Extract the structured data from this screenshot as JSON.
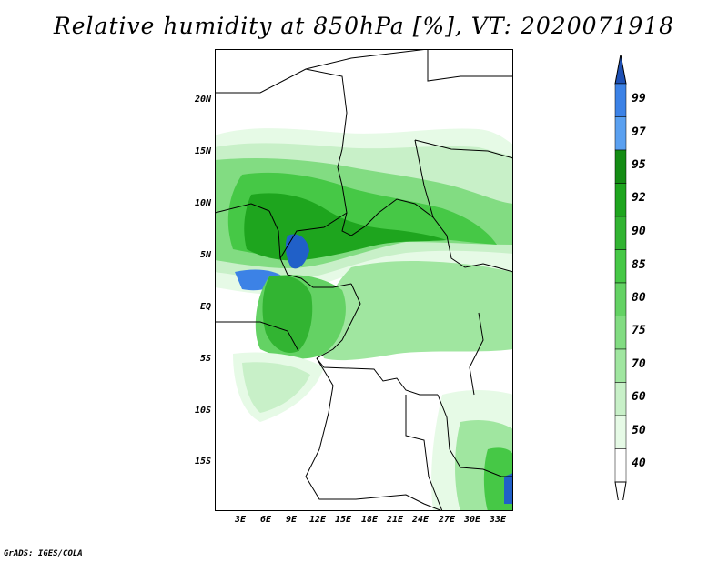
{
  "title": "Relative humidity at 850hPa [%], VT: 2020071918",
  "credit": "GrADS: IGES/COLA",
  "map": {
    "lat_labels": [
      "20N",
      "15N",
      "10N",
      "5N",
      "EQ",
      "5S",
      "10S",
      "15S"
    ],
    "lon_labels": [
      "3E",
      "6E",
      "9E",
      "12E",
      "15E",
      "18E",
      "21E",
      "24E",
      "27E",
      "30E",
      "33E"
    ],
    "lat_range": [
      -19.5,
      24.5
    ],
    "lon_range": [
      0,
      34
    ]
  },
  "colorbar": {
    "levels": [
      "99",
      "97",
      "95",
      "92",
      "90",
      "85",
      "80",
      "75",
      "70",
      "60",
      "50",
      "40"
    ],
    "colors": [
      "#2060c8",
      "#3c82e6",
      "#5aa0f0",
      "#148c14",
      "#1ea51e",
      "#32b432",
      "#46c846",
      "#64d264",
      "#82dc82",
      "#a0e6a0",
      "#c8f0c8",
      "#e6fae6",
      "#ffffff"
    ],
    "top_arrow_color": "#1e50b4",
    "bottom_arrow_color": "#ffffff"
  }
}
